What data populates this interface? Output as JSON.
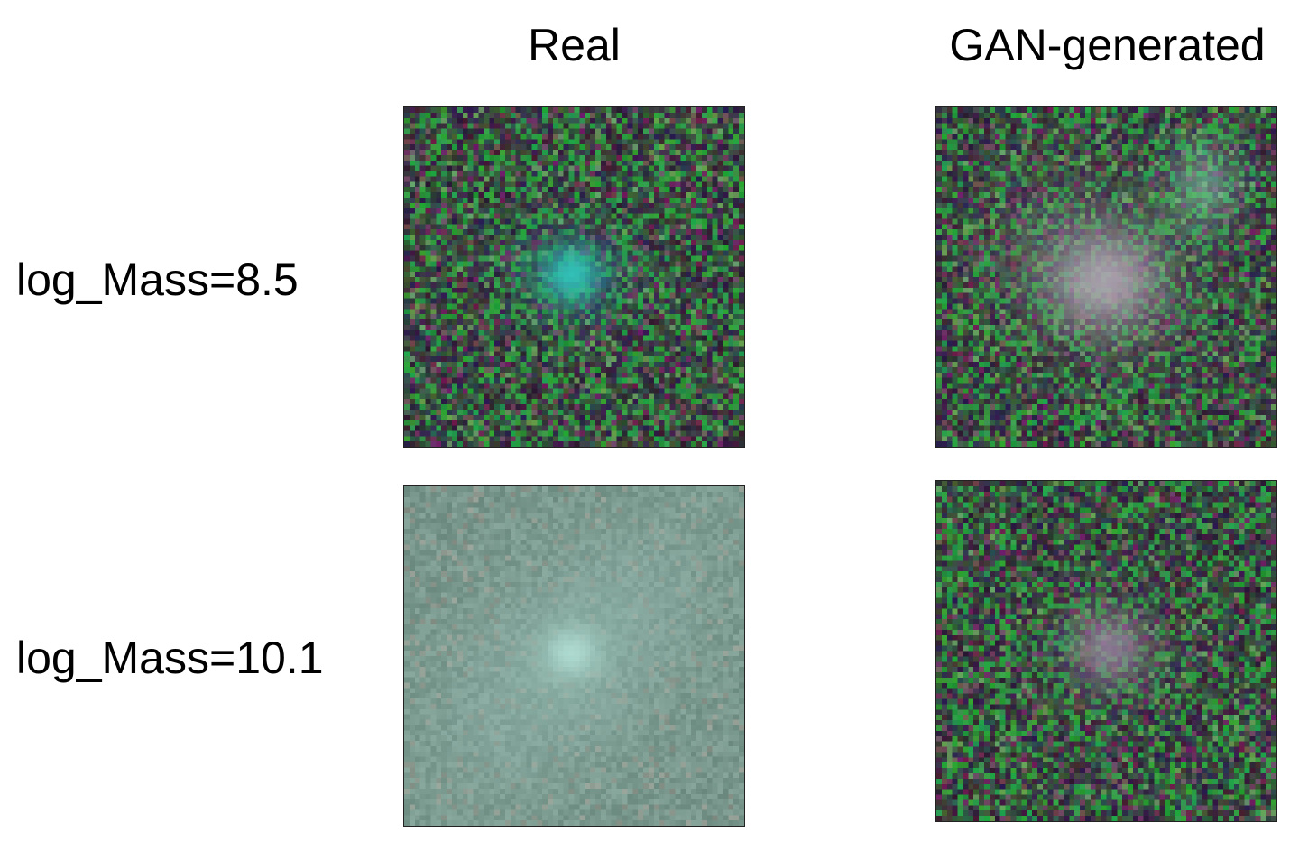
{
  "columns": {
    "real": "Real",
    "gan": "GAN-generated"
  },
  "rows": [
    {
      "label": "log_Mass=8.5"
    },
    {
      "label": "log_Mass=10.1"
    }
  ],
  "panels": [
    {
      "id": "real-8.5",
      "description_icon": "galaxy-cutout-image",
      "style": "compact-cyan-core"
    },
    {
      "id": "gan-8.5",
      "description_icon": "galaxy-cutout-image",
      "style": "diffuse-pink-with-companion"
    },
    {
      "id": "real-10.1",
      "description_icon": "galaxy-cutout-image",
      "style": "large-extended-pale"
    },
    {
      "id": "gan-10.1",
      "description_icon": "galaxy-cutout-image",
      "style": "small-faint-pink"
    }
  ],
  "colors": {
    "noise_dark": "#2a1630",
    "noise_green": "#2e7a2e",
    "core_cyan": "#3ff0dd",
    "core_pale": "#c9e8e4",
    "core_pink": "#d9b8d6"
  }
}
